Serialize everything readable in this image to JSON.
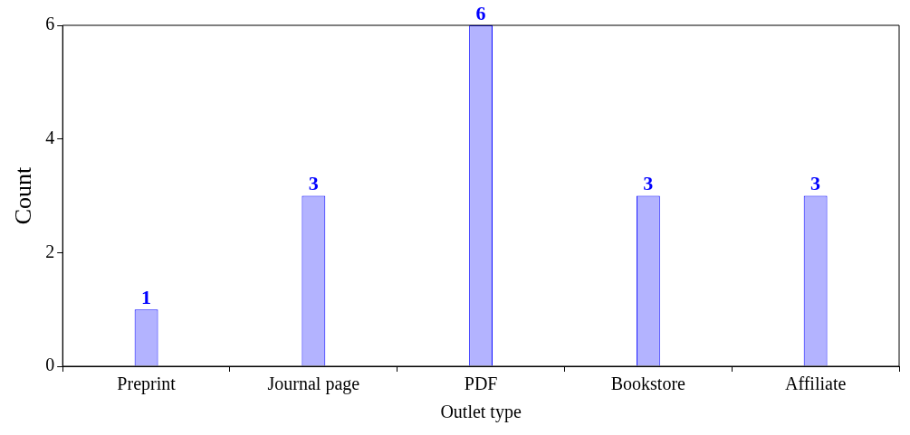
{
  "chart_data": {
    "type": "bar",
    "xlabel": "Outlet type",
    "ylabel": "Count",
    "categories": [
      "Preprint",
      "Journal page",
      "PDF",
      "Bookstore",
      "Affiliate"
    ],
    "values": [
      1,
      3,
      6,
      3,
      3
    ],
    "color": "#b3b3ff",
    "data_labels": true,
    "ylim": [
      0,
      6
    ],
    "yticks": [
      0,
      2,
      4,
      6
    ],
    "grid": false,
    "legend": false
  }
}
